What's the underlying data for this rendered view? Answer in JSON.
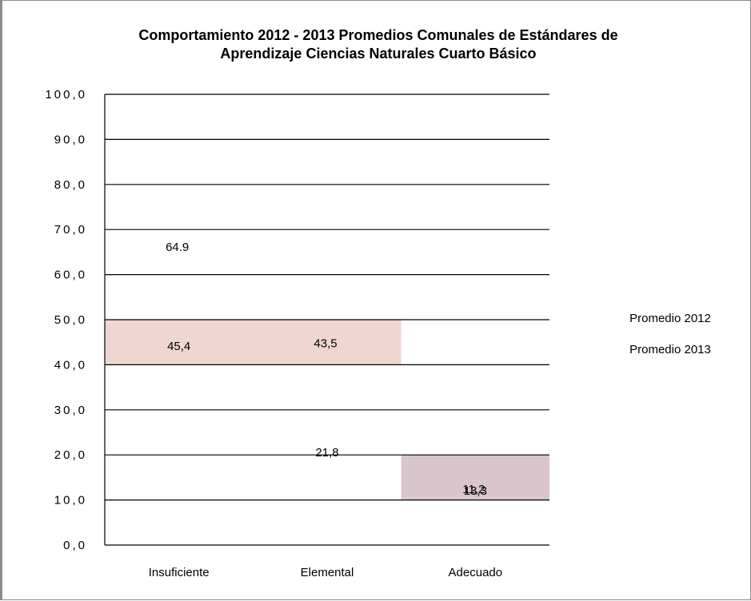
{
  "chart_data": {
    "type": "bar",
    "title_line1": "Comportamiento 2012 - 2013 Promedios Comunales de Estándares de",
    "title_line2": "Aprendizaje Ciencias Naturales Cuarto Básico",
    "categories": [
      "Insuficiente",
      "Elemental",
      "Adecuado"
    ],
    "ylim": [
      0,
      100
    ],
    "yticks": [
      "0,0",
      "10,0",
      "20,0",
      "30,0",
      "40,0",
      "50,0",
      "60,0",
      "70,0",
      "80,0",
      "90,0",
      "100,0"
    ],
    "grid": true,
    "legend_position": "right",
    "series": [
      {
        "name": "Promedio 2012",
        "values": [
          64.9,
          43.5,
          11.2
        ],
        "labels": [
          "64.9",
          "43,5",
          "11,2"
        ]
      },
      {
        "name": "Promedio 2013",
        "values": [
          45.4,
          21.8,
          13.3
        ],
        "labels": [
          "45,4",
          "21,8",
          "13,3"
        ]
      }
    ],
    "bands": [
      {
        "from": 40,
        "to": 50,
        "categories": [
          0,
          1
        ],
        "color": "#efd6d2"
      },
      {
        "from": 10,
        "to": 20,
        "categories": [
          2,
          2
        ],
        "color": "#d9c6cc"
      }
    ],
    "colors": {
      "gridline": "#000000",
      "axis": "#000000",
      "text": "#000000"
    }
  }
}
